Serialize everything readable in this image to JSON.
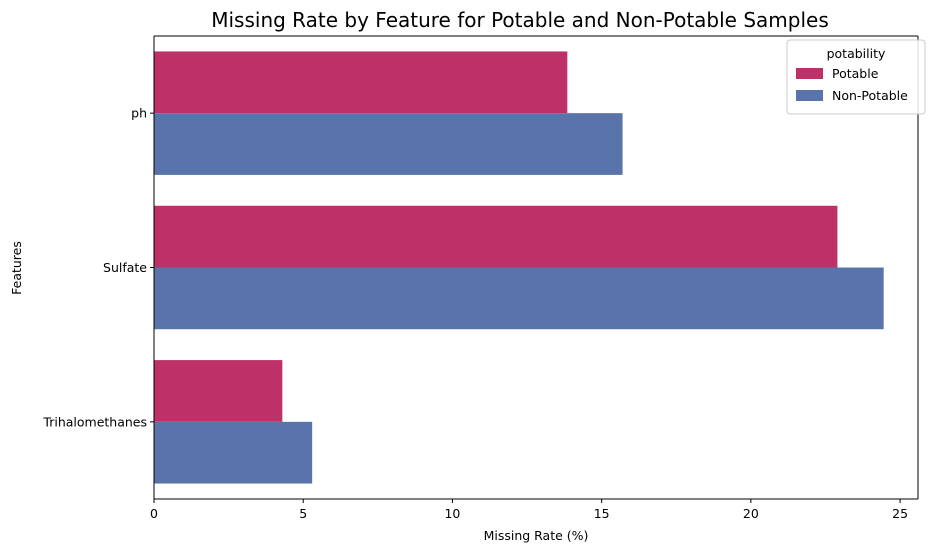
{
  "chart_data": {
    "type": "bar",
    "orientation": "horizontal",
    "title": "Missing Rate by Feature for Potable and Non-Potable Samples",
    "xlabel": "Missing Rate (%)",
    "ylabel": "Features",
    "categories": [
      "ph",
      "Sulfate",
      "Trihalomethanes"
    ],
    "series": [
      {
        "name": "Potable",
        "values": [
          13.85,
          22.9,
          4.3
        ],
        "color": "#bd3068"
      },
      {
        "name": "Non-Potable",
        "values": [
          15.7,
          24.45,
          5.3
        ],
        "color": "#5874aa"
      }
    ],
    "xlim": [
      0,
      25.6
    ],
    "xticks": [
      0,
      5,
      10,
      15,
      20,
      25
    ],
    "legend": {
      "title": "potability",
      "position": "top-right"
    },
    "grid": false
  }
}
